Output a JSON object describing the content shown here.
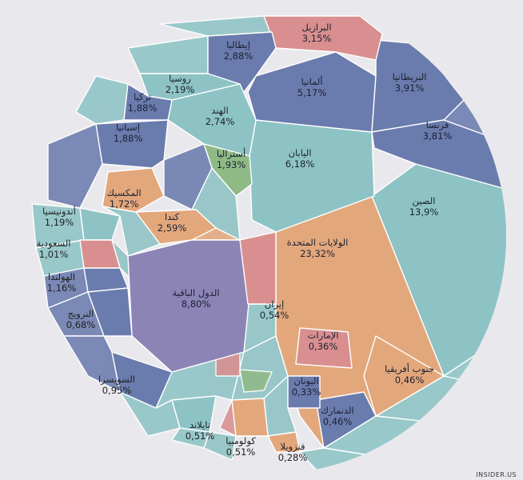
{
  "chart_data": {
    "type": "voronoi-treemap",
    "unit": "%",
    "groups": {
      "asia": "#8ec3c5",
      "europe": "#6a7bad",
      "americas": "#e3a77c",
      "oceania": "#8fba86",
      "middle_east": "#d98f8f",
      "rest": "#8d84b6",
      "africa": "#e3a77c"
    },
    "cells": [
      {
        "key": "usa",
        "name": "الولايات المتحدة",
        "value": "23,32%",
        "numeric": 23.32,
        "group": "americas",
        "labelPos": "inside"
      },
      {
        "key": "china",
        "name": "الصين",
        "value": "13,9%",
        "numeric": 13.9,
        "group": "asia",
        "labelPos": "inside"
      },
      {
        "key": "rest",
        "name": "الدول الباقية",
        "value": "8,80%",
        "numeric": 8.8,
        "group": "rest",
        "labelPos": "inside"
      },
      {
        "key": "japan",
        "name": "اليابان",
        "value": "6,18%",
        "numeric": 6.18,
        "group": "asia",
        "labelPos": "inside"
      },
      {
        "key": "germany",
        "name": "ألمانيا",
        "value": "5,17%",
        "numeric": 5.17,
        "group": "europe",
        "labelPos": "inside"
      },
      {
        "key": "uk",
        "name": "البريطانيا",
        "value": "3,91%",
        "numeric": 3.91,
        "group": "europe",
        "labelPos": "inside"
      },
      {
        "key": "france",
        "name": "فرنسا",
        "value": "3,81%",
        "numeric": 3.81,
        "group": "europe",
        "labelPos": "inside"
      },
      {
        "key": "brazil",
        "name": "البرازيل",
        "value": "3,15%",
        "numeric": 3.15,
        "group": "middle_east",
        "labelPos": "inside"
      },
      {
        "key": "italy",
        "name": "إيطاليا",
        "value": "2,88%",
        "numeric": 2.88,
        "group": "europe",
        "labelPos": "inside"
      },
      {
        "key": "india",
        "name": "الهند",
        "value": "2,74%",
        "numeric": 2.74,
        "group": "asia",
        "labelPos": "inside"
      },
      {
        "key": "canada",
        "name": "كندا",
        "value": "2,59%",
        "numeric": 2.59,
        "group": "americas",
        "labelPos": "inside"
      },
      {
        "key": "russia",
        "name": "روسيا",
        "value": "2,19%",
        "numeric": 2.19,
        "group": "asia",
        "labelPos": "inside"
      },
      {
        "key": "australia",
        "name": "أستراليا",
        "value": "1,93%",
        "numeric": 1.93,
        "group": "oceania",
        "labelPos": "inside"
      },
      {
        "key": "turkey",
        "name": "تركيا",
        "value": "1,88%",
        "numeric": 1.88,
        "group": "europe",
        "labelPos": "inside"
      },
      {
        "key": "spain",
        "name": "إسبانيا",
        "value": "1,88%",
        "numeric": 1.88,
        "group": "europe",
        "labelPos": "inside"
      },
      {
        "key": "mexico",
        "name": "المكسيك",
        "value": "1,72%",
        "numeric": 1.72,
        "group": "americas",
        "labelPos": "inside"
      },
      {
        "key": "indonesia",
        "name": "أندونيسيا",
        "value": "1,19%",
        "numeric": 1.19,
        "group": "asia",
        "labelPos": "outside"
      },
      {
        "key": "netherlands",
        "name": "الهولندا",
        "value": "1,16%",
        "numeric": 1.16,
        "group": "europe",
        "labelPos": "outside"
      },
      {
        "key": "saudi",
        "name": "السعودية",
        "value": "1,01%",
        "numeric": 1.01,
        "group": "middle_east",
        "labelPos": "outside"
      },
      {
        "key": "switzerland",
        "name": "السويسرا",
        "value": "0,95%",
        "numeric": 0.95,
        "group": "europe",
        "labelPos": "outside"
      },
      {
        "key": "norway",
        "name": "النرويج",
        "value": "0,68%",
        "numeric": 0.68,
        "group": "europe",
        "labelPos": "outside"
      },
      {
        "key": "iran",
        "name": "إيران",
        "value": "0,54%",
        "numeric": 0.54,
        "group": "middle_east",
        "labelPos": "inside"
      },
      {
        "key": "thailand",
        "name": "تايلاند",
        "value": "0,51%",
        "numeric": 0.51,
        "group": "asia",
        "labelPos": "outside"
      },
      {
        "key": "colombia",
        "name": "كولومبيا",
        "value": "0,51%",
        "numeric": 0.51,
        "group": "americas",
        "labelPos": "outside"
      },
      {
        "key": "southafrica",
        "name": "جنوب أفريقيا",
        "value": "0,46%",
        "numeric": 0.46,
        "group": "africa",
        "labelPos": "inside"
      },
      {
        "key": "denmark",
        "name": "الدنمارك",
        "value": "0,46%",
        "numeric": 0.46,
        "group": "europe",
        "labelPos": "inside"
      },
      {
        "key": "uae",
        "name": "الإمارات",
        "value": "0,36%",
        "numeric": 0.36,
        "group": "middle_east",
        "labelPos": "inside"
      },
      {
        "key": "greece",
        "name": "اليونان",
        "value": "0,33%",
        "numeric": 0.33,
        "group": "europe",
        "labelPos": "inside"
      },
      {
        "key": "venezuela",
        "name": "فنزويلا",
        "value": "0,28%",
        "numeric": 0.28,
        "group": "americas",
        "labelPos": "outside"
      }
    ]
  },
  "watermark": "INSIDER.US"
}
